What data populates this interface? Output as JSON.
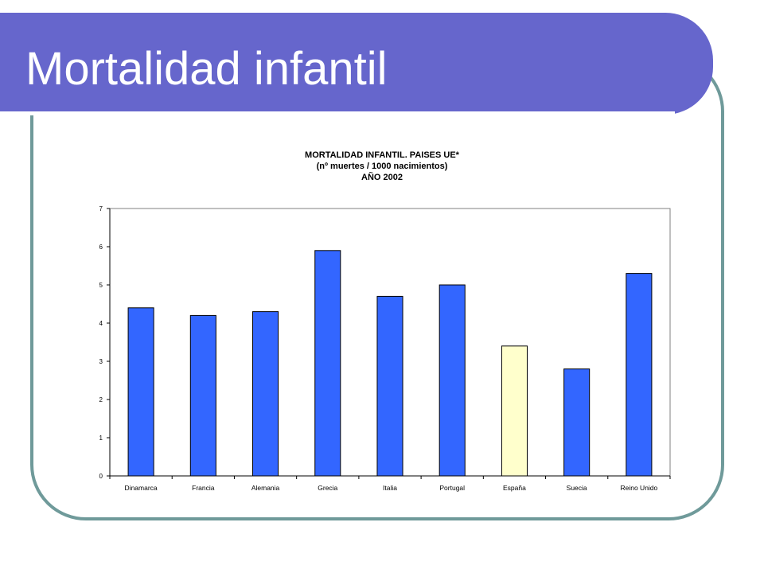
{
  "slide": {
    "title": "Mortalidad infantil"
  },
  "chart_data": {
    "type": "bar",
    "title": [
      "MORTALIDAD INFANTIL. PAISES UE*",
      "(nº muertes / 1000 nacimientos)",
      "AÑO 2002"
    ],
    "categories": [
      "Dinamarca",
      "Francia",
      "Alemania",
      "Grecia",
      "Italia",
      "Portugal",
      "España",
      "Suecia",
      "Reino Unido"
    ],
    "values": [
      4.4,
      4.2,
      4.3,
      5.9,
      4.7,
      5.0,
      3.4,
      2.8,
      5.3
    ],
    "highlight_index": 6,
    "colors": {
      "bar": "#3366ff",
      "highlight": "#ffffcc",
      "stroke": "#000000"
    },
    "ylim": [
      0,
      7
    ],
    "yticks": [
      0,
      1,
      2,
      3,
      4,
      5,
      6,
      7
    ],
    "grid": false,
    "legend": "none"
  }
}
